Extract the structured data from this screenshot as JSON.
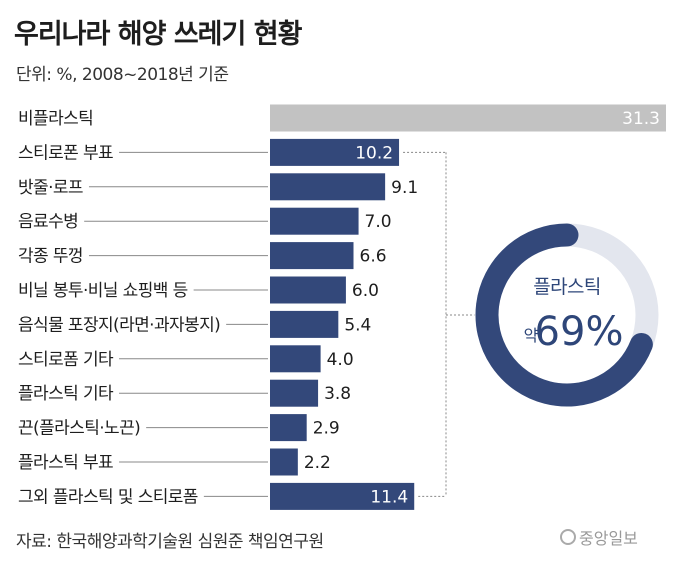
{
  "header": {
    "title": "우리나라 해양 쓰레기 현황",
    "subtitle": "단위: %, 2008~2018년 기준"
  },
  "footer": {
    "source": "자료: 한국해양과학기술원 심원준 책임연구원",
    "logo_text": "중앙일보"
  },
  "colors": {
    "navy": "#33487a",
    "gray": "#c2c2c2",
    "donut_bg": "#ffffff"
  },
  "chart_data": {
    "type": "bar",
    "orientation": "horizontal",
    "categories": [
      "비플라스틱",
      "스티로폰 부표",
      "밧줄·로프",
      "음료수병",
      "각종 뚜껑",
      "비닐 봉투·비닐 쇼핑백 등",
      "음식물 포장지(라면·과자봉지)",
      "스티로폼 기타",
      "플라스틱 기타",
      "끈(플라스틱·노끈)",
      "플라스틱 부표",
      "그외 플라스틱 및 스티로폼"
    ],
    "values": [
      31.3,
      10.2,
      9.1,
      7.0,
      6.6,
      6.0,
      5.4,
      4.0,
      3.8,
      2.9,
      2.2,
      11.4
    ],
    "value_labels": [
      "31.3",
      "10.2",
      "9.1",
      "7.0",
      "6.6",
      "6.0",
      "5.4",
      "4.0",
      "3.8",
      "2.9",
      "2.2",
      "11.4"
    ],
    "xlim": [
      0,
      31.3
    ],
    "grid": false,
    "legend": "none",
    "highlight": {
      "label": "플라스틱",
      "prefix": "약",
      "percent_label": "69%",
      "value": 69
    }
  }
}
